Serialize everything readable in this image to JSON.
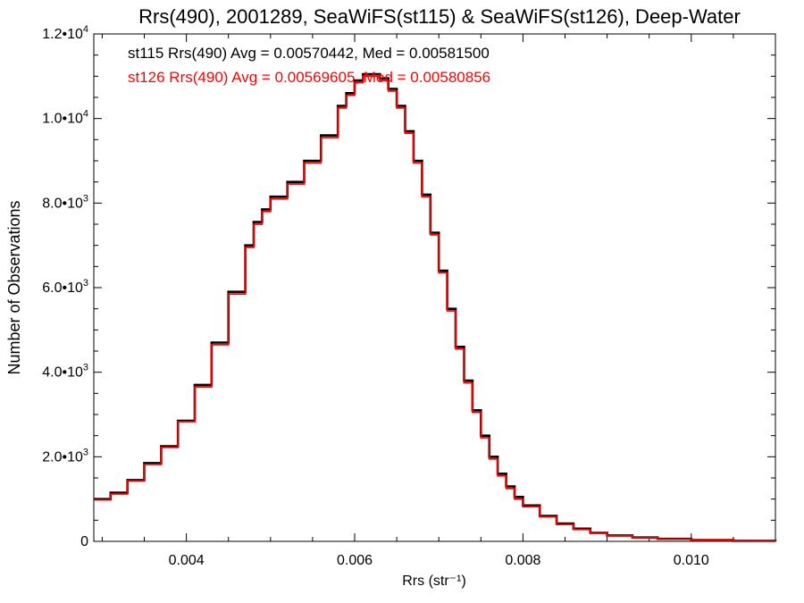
{
  "chart_data": {
    "type": "line",
    "title": "Rrs(490), 2001289, SeaWiFS(st115) & SeaWiFS(st126), Deep-Water",
    "xlabel": "Rrs (str⁻¹)",
    "ylabel": "Number of Observations",
    "xlim": [
      0.0029,
      0.011
    ],
    "ylim": [
      0,
      12000
    ],
    "x_ticks": [
      0.004,
      0.006,
      0.008,
      0.01
    ],
    "x_tick_labels": [
      "0.004",
      "0.006",
      "0.008",
      "0.010"
    ],
    "y_ticks": [
      0,
      2000,
      4000,
      6000,
      8000,
      10000,
      12000
    ],
    "y_tick_labels": [
      {
        "mant": "0",
        "exp": ""
      },
      {
        "mant": "2.0•10",
        "exp": "3"
      },
      {
        "mant": "4.0•10",
        "exp": "3"
      },
      {
        "mant": "6.0•10",
        "exp": "3"
      },
      {
        "mant": "8.0•10",
        "exp": "3"
      },
      {
        "mant": "1.0•10",
        "exp": "4"
      },
      {
        "mant": "1.2•10",
        "exp": "4"
      }
    ],
    "grid": false,
    "legend_placement": "top-left",
    "series": [
      {
        "name": "st115",
        "color": "#000000",
        "annotation": "st115 Rrs(490) Avg = 0.00570442, Med = 0.00581500",
        "x": [
          0.0029,
          0.0031,
          0.0033,
          0.0035,
          0.0037,
          0.0039,
          0.0041,
          0.0043,
          0.0045,
          0.0047,
          0.0048,
          0.0049,
          0.005,
          0.0052,
          0.0054,
          0.0056,
          0.0058,
          0.0059,
          0.006,
          0.0061,
          0.0062,
          0.0063,
          0.0064,
          0.0065,
          0.0066,
          0.0067,
          0.0068,
          0.0069,
          0.007,
          0.0071,
          0.0072,
          0.0073,
          0.0074,
          0.0075,
          0.0076,
          0.0077,
          0.0078,
          0.0079,
          0.008,
          0.0082,
          0.0084,
          0.0086,
          0.0088,
          0.009,
          0.0093,
          0.0096,
          0.01,
          0.0105,
          0.011
        ],
        "y": [
          1000,
          1150,
          1450,
          1850,
          2250,
          2850,
          3700,
          4700,
          5900,
          7000,
          7550,
          7850,
          8150,
          8500,
          9000,
          9600,
          10300,
          10600,
          10900,
          11050,
          11050,
          10950,
          10700,
          10300,
          9700,
          9000,
          8200,
          7300,
          6400,
          5500,
          4600,
          3800,
          3100,
          2500,
          2000,
          1600,
          1300,
          1050,
          850,
          600,
          420,
          300,
          200,
          140,
          90,
          60,
          30,
          12,
          5
        ]
      },
      {
        "name": "st126",
        "color": "#ff0000",
        "annotation": "st126 Rrs(490) Avg = 0.00569605, Med = 0.00580856",
        "x": [
          0.0029,
          0.0031,
          0.0033,
          0.0035,
          0.0037,
          0.0039,
          0.0041,
          0.0043,
          0.0045,
          0.0047,
          0.0048,
          0.0049,
          0.005,
          0.0052,
          0.0054,
          0.0056,
          0.0058,
          0.0059,
          0.006,
          0.0061,
          0.0062,
          0.0063,
          0.0064,
          0.0065,
          0.0066,
          0.0067,
          0.0068,
          0.0069,
          0.007,
          0.0071,
          0.0072,
          0.0073,
          0.0074,
          0.0075,
          0.0076,
          0.0077,
          0.0078,
          0.0079,
          0.008,
          0.0082,
          0.0084,
          0.0086,
          0.0088,
          0.009,
          0.0093,
          0.0096,
          0.01,
          0.0105,
          0.011
        ],
        "y": [
          980,
          1120,
          1430,
          1820,
          2220,
          2830,
          3650,
          4650,
          5850,
          6950,
          7500,
          7800,
          8100,
          8450,
          8950,
          9550,
          10250,
          10550,
          10850,
          11000,
          11000,
          10900,
          10650,
          10250,
          9650,
          8950,
          8150,
          7250,
          6350,
          5450,
          4550,
          3750,
          3050,
          2450,
          1950,
          1550,
          1250,
          1000,
          820,
          580,
          400,
          280,
          190,
          130,
          85,
          55,
          28,
          10,
          4
        ]
      }
    ]
  }
}
